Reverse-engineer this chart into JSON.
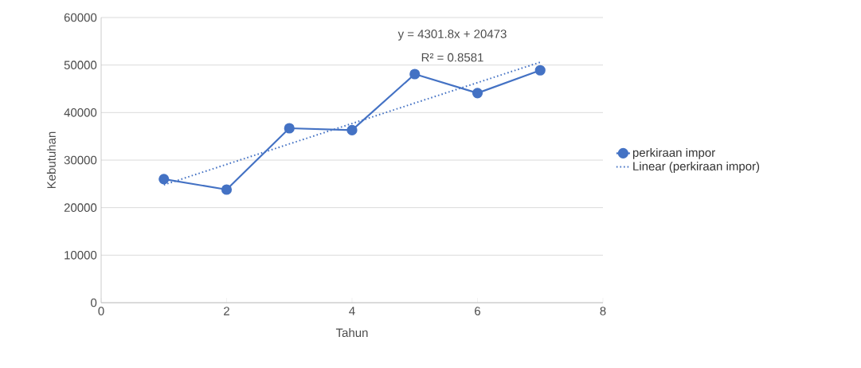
{
  "chart_data": {
    "type": "line",
    "xlabel": "Tahun",
    "ylabel": "Kebutuhan",
    "x": [
      1,
      2,
      3,
      4,
      5,
      6,
      7
    ],
    "series": [
      {
        "name": "perkiraan impor",
        "color": "#4472c4",
        "values": [
          26000,
          23800,
          36700,
          36300,
          48100,
          44100,
          48900
        ],
        "marker": "circle",
        "line_style": "solid"
      },
      {
        "name": "Linear (perkiraan impor)",
        "color": "#4472c4",
        "type": "line",
        "x": [
          1,
          7
        ],
        "values": [
          24800,
          50600
        ],
        "marker": "none",
        "line_style": "dotted"
      }
    ],
    "xlim": [
      0,
      8
    ],
    "ylim": [
      0,
      60000
    ],
    "xticks": [
      0,
      2,
      4,
      6,
      8
    ],
    "yticks": [
      0,
      10000,
      20000,
      30000,
      40000,
      50000,
      60000
    ],
    "grid": "y",
    "legend": "right",
    "annotations": [
      "y = 4301.8x + 20473",
      "R² = 0.8581"
    ]
  }
}
